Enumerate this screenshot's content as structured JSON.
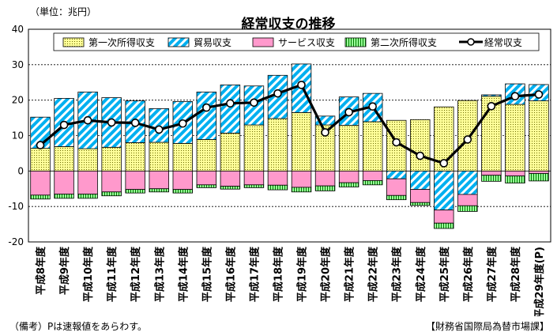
{
  "notes": {
    "unit": "（単位：兆円）",
    "footnote": "（備考）Pは速報値をあらわす。",
    "source": "【財務省国際局為替市場課】"
  },
  "chart_data": {
    "type": "bar",
    "title": "経常収支の推移",
    "categories": [
      "平成8年度",
      "平成9年度",
      "平成10年度",
      "平成11年度",
      "平成12年度",
      "平成13年度",
      "平成14年度",
      "平成15年度",
      "平成16年度",
      "平成17年度",
      "平成18年度",
      "平成19年度",
      "平成20年度",
      "平成21年度",
      "平成22年度",
      "平成23年度",
      "平成24年度",
      "平成25年度",
      "平成26年度",
      "平成27年度",
      "平成28年度",
      "平成29年度(P)"
    ],
    "ylim": [
      -20,
      40
    ],
    "yticks": [
      -20,
      -10,
      0,
      10,
      20,
      30,
      40
    ],
    "grid": true,
    "legend_position": "top",
    "series": [
      {
        "name": "第一次所得収支",
        "kind": "bar",
        "color": "#ffff99",
        "pattern": "dots",
        "values": [
          6.4,
          6.9,
          6.3,
          6.7,
          8.0,
          8.1,
          7.8,
          8.9,
          10.7,
          13.0,
          14.8,
          16.5,
          13.0,
          12.9,
          13.9,
          14.3,
          14.5,
          18.1,
          19.9,
          21.1,
          18.8,
          19.8
        ]
      },
      {
        "name": "貿易収支",
        "kind": "bar",
        "color": "#00b0f0",
        "pattern": "hatch",
        "values": [
          8.8,
          13.6,
          16.0,
          14.0,
          11.8,
          9.5,
          11.8,
          13.4,
          13.6,
          11.0,
          12.2,
          13.7,
          2.5,
          8.0,
          8.0,
          -2.2,
          -5.2,
          -11.0,
          -6.6,
          0.4,
          5.8,
          4.6
        ]
      },
      {
        "name": "サービス収支",
        "kind": "bar",
        "color": "#ff99cc",
        "pattern": "solid",
        "values": [
          -6.8,
          -6.5,
          -6.5,
          -5.9,
          -5.2,
          -5.0,
          -5.2,
          -3.9,
          -4.3,
          -3.9,
          -4.0,
          -4.6,
          -4.2,
          -3.3,
          -2.7,
          -4.7,
          -3.7,
          -3.7,
          -3.2,
          -1.2,
          -1.4,
          -0.7
        ]
      },
      {
        "name": "第二次所得収支",
        "kind": "bar",
        "color": "#99ff99",
        "pattern": "vlines",
        "values": [
          -1.1,
          -1.2,
          -1.2,
          -1.1,
          -1.0,
          -0.9,
          -1.0,
          -0.8,
          -0.8,
          -0.8,
          -1.3,
          -1.3,
          -1.4,
          -1.2,
          -1.2,
          -1.2,
          -0.8,
          -1.5,
          -1.6,
          -1.7,
          -2.0,
          -2.1
        ]
      },
      {
        "name": "経常収支",
        "kind": "line",
        "color": "#000000",
        "values": [
          7.3,
          13.0,
          14.3,
          13.7,
          13.6,
          11.7,
          13.4,
          17.9,
          19.1,
          19.3,
          21.9,
          24.3,
          10.9,
          16.6,
          18.2,
          8.1,
          4.3,
          2.2,
          8.9,
          18.3,
          21.1,
          21.6
        ]
      }
    ]
  }
}
